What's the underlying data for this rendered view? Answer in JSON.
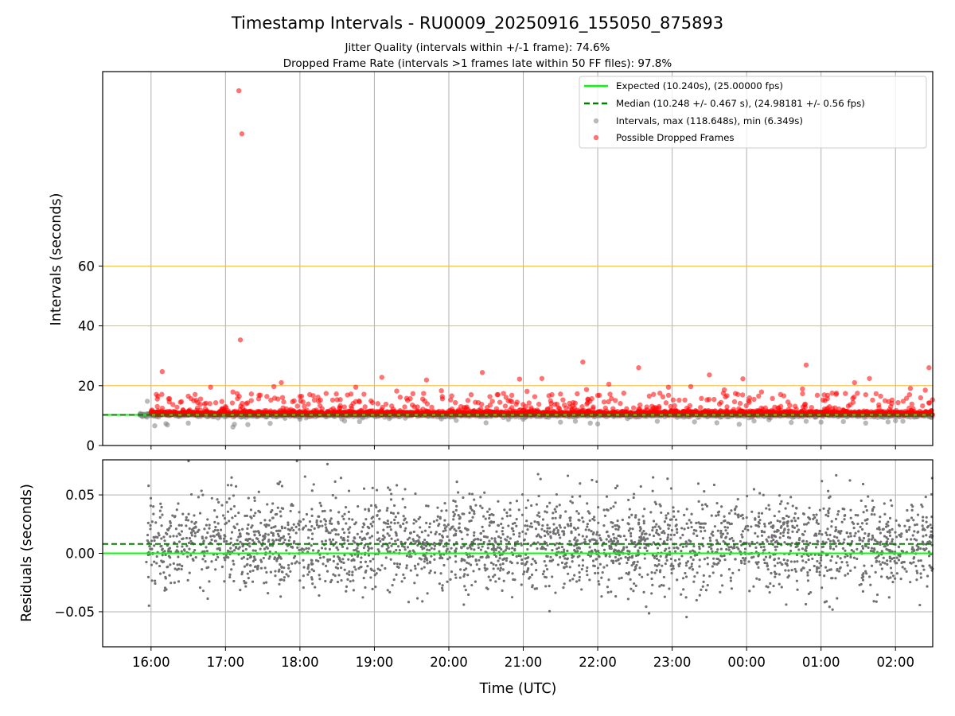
{
  "chart_data": {
    "title": "Timestamp Intervals - RU0009_20250916_155050_875893",
    "subtitle_lines": [
      "Jitter Quality (intervals within +/-1 frame): 74.6%",
      "Dropped Frame Rate (intervals >1 frames late within 50 FF files): 97.8%"
    ],
    "xlabel": "Time (UTC)",
    "x_ticks": [
      "16:00",
      "17:00",
      "18:00",
      "19:00",
      "20:00",
      "21:00",
      "22:00",
      "23:00",
      "00:00",
      "01:00",
      "02:00"
    ],
    "x_range_hours": [
      15.35,
      26.5
    ],
    "charts": [
      {
        "type": "scatter",
        "ylabel": "Intervals (seconds)",
        "ylim": [
          0,
          125
        ],
        "y_ticks": [
          0,
          20,
          40,
          60
        ],
        "grid": true,
        "horizontal_reference_lines": [
          20,
          40,
          60
        ],
        "expected_interval": 10.24,
        "median_interval": 10.248,
        "legend_position": "upper right",
        "legend": [
          "Expected (10.240s), (25.00000 fps)",
          "Median (10.248 +/- 0.467 s), (24.98181 +/- 0.56 fps)",
          "Intervals, max (118.648s), min (6.349s)",
          "Possible Dropped Frames"
        ],
        "series": [
          {
            "name": "Intervals",
            "color": "#808080",
            "points": [
              [
                15.85,
                10.2
              ],
              [
                15.95,
                14.8
              ],
              [
                16.05,
                6.6
              ],
              [
                16.2,
                7.3
              ],
              [
                16.22,
                6.9
              ],
              [
                16.5,
                7.5
              ],
              [
                16.9,
                9.2
              ],
              [
                17.1,
                6.2
              ],
              [
                17.12,
                7.1
              ],
              [
                17.3,
                7.0
              ],
              [
                17.6,
                7.4
              ],
              [
                17.8,
                9.1
              ],
              [
                18.0,
                8.8
              ],
              [
                18.6,
                8.2
              ],
              [
                18.8,
                8.0
              ],
              [
                19.2,
                9.0
              ],
              [
                19.9,
                8.9
              ],
              [
                20.1,
                8.4
              ],
              [
                20.5,
                7.6
              ],
              [
                20.8,
                8.7
              ],
              [
                21.0,
                8.8
              ],
              [
                21.5,
                7.8
              ],
              [
                21.7,
                8.1
              ],
              [
                21.9,
                7.5
              ],
              [
                22.0,
                7.2
              ],
              [
                22.4,
                9.0
              ],
              [
                22.8,
                8.1
              ],
              [
                23.3,
                7.9
              ],
              [
                23.6,
                7.6
              ],
              [
                23.9,
                7.1
              ],
              [
                24.1,
                8.2
              ],
              [
                24.3,
                8.6
              ],
              [
                24.6,
                7.7
              ],
              [
                24.8,
                8.1
              ],
              [
                25.0,
                7.8
              ],
              [
                25.3,
                8.0
              ],
              [
                25.6,
                7.5
              ],
              [
                25.9,
                7.9
              ],
              [
                26.0,
                8.3
              ],
              [
                26.1,
                8.1
              ],
              [
                26.2,
                9.5
              ]
            ]
          },
          {
            "name": "Possible Dropped Frames",
            "color": "#ff0000",
            "points": [
              [
                17.18,
                118.6
              ],
              [
                17.22,
                104.2
              ],
              [
                17.2,
                35.3
              ],
              [
                16.15,
                24.7
              ],
              [
                16.5,
                16.5
              ],
              [
                16.8,
                19.5
              ],
              [
                17.1,
                17.9
              ],
              [
                17.45,
                16.8
              ],
              [
                17.65,
                19.7
              ],
              [
                17.75,
                21.0
              ],
              [
                18.0,
                16.4
              ],
              [
                18.5,
                15.3
              ],
              [
                18.75,
                19.5
              ],
              [
                19.1,
                22.8
              ],
              [
                19.3,
                18.2
              ],
              [
                19.7,
                21.9
              ],
              [
                19.9,
                18.3
              ],
              [
                20.3,
                17.0
              ],
              [
                20.45,
                24.4
              ],
              [
                20.65,
                17.0
              ],
              [
                20.95,
                22.2
              ],
              [
                21.05,
                18.1
              ],
              [
                21.25,
                22.4
              ],
              [
                21.5,
                17.2
              ],
              [
                21.8,
                27.9
              ],
              [
                21.85,
                18.7
              ],
              [
                22.15,
                20.5
              ],
              [
                22.35,
                17.5
              ],
              [
                22.55,
                26.0
              ],
              [
                22.75,
                17.1
              ],
              [
                22.95,
                19.5
              ],
              [
                23.25,
                19.7
              ],
              [
                23.5,
                23.6
              ],
              [
                23.7,
                18.6
              ],
              [
                23.85,
                17.4
              ],
              [
                23.95,
                22.3
              ],
              [
                24.2,
                17.9
              ],
              [
                24.5,
                16.6
              ],
              [
                24.75,
                18.9
              ],
              [
                24.8,
                26.9
              ],
              [
                24.95,
                16.8
              ],
              [
                25.15,
                17.5
              ],
              [
                25.45,
                21.0
              ],
              [
                25.6,
                17.0
              ],
              [
                25.65,
                22.4
              ],
              [
                25.8,
                16.5
              ],
              [
                26.2,
                19.1
              ],
              [
                26.45,
                26.0
              ],
              [
                26.4,
                18.5
              ]
            ]
          }
        ]
      },
      {
        "type": "scatter",
        "ylabel": "Residuals (seconds)",
        "ylim": [
          -0.08,
          0.08
        ],
        "y_ticks": [
          0.05,
          0.0,
          -0.05
        ],
        "y_tick_labels": [
          "0.05",
          "0.00",
          "−0.05"
        ],
        "grid": true,
        "expected_residual": 0.0,
        "median_residual": 0.008,
        "residual_std_approx": 0.02,
        "series": [
          {
            "name": "Residuals",
            "color": "#707070",
            "approx_count": 2900
          }
        ]
      }
    ],
    "colors": {
      "expected": "#00ff00",
      "median": "#007f00",
      "intervals": "#808080",
      "dropped": "#ff0000",
      "ref_lines": "#ffb733",
      "grid": "#b0b0b0"
    }
  }
}
